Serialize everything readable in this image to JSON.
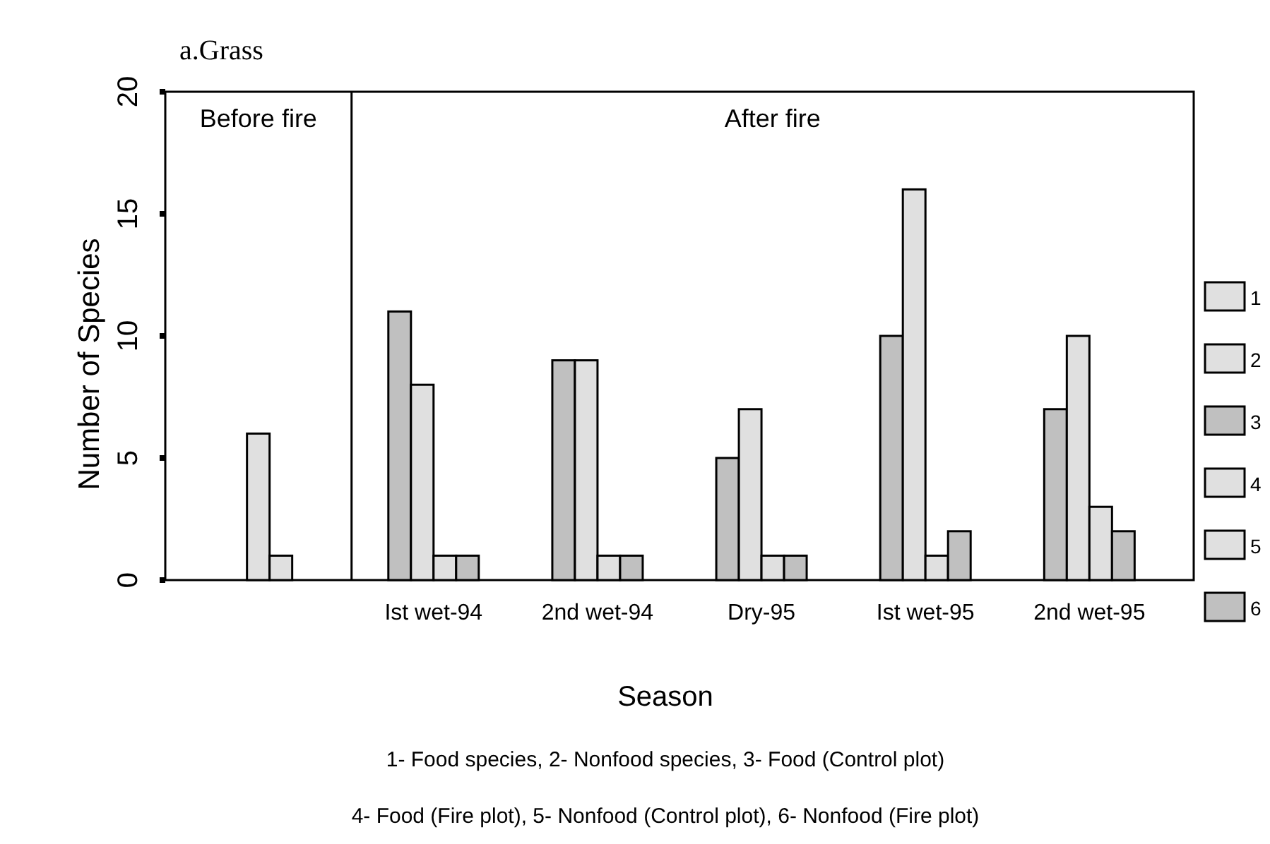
{
  "chart_data": {
    "type": "bar",
    "title": "a.Grass",
    "xlabel": "Season",
    "ylabel": "Number of Species",
    "categories": [
      null,
      "Ist wet-94",
      "2nd wet-94",
      "Dry-95",
      "Ist wet-95",
      "2nd wet-95"
    ],
    "series": [
      {
        "name": "1",
        "color": "#e0e0e0",
        "values": [
          6,
          null,
          null,
          null,
          null,
          null
        ]
      },
      {
        "name": "2",
        "color": "#e0e0e0",
        "values": [
          1,
          null,
          null,
          null,
          null,
          null
        ]
      },
      {
        "name": "3",
        "color": "#c0c0c0",
        "values": [
          null,
          11,
          9,
          5,
          10,
          7
        ]
      },
      {
        "name": "4",
        "color": "#e0e0e0",
        "values": [
          null,
          8,
          9,
          7,
          16,
          10
        ]
      },
      {
        "name": "5",
        "color": "#e0e0e0",
        "values": [
          null,
          1,
          1,
          1,
          1,
          3
        ]
      },
      {
        "name": "6",
        "color": "#c0c0c0",
        "values": [
          null,
          1,
          1,
          1,
          2,
          2
        ]
      }
    ],
    "ylim": [
      0,
      20
    ],
    "yticks": [
      0,
      5,
      10,
      15,
      20
    ],
    "grid": false,
    "legend": "right",
    "annotations": [
      "Before fire",
      "After fire",
      "1- Food species, 2- Nonfood species, 3- Food (Control plot)",
      "4- Food (Fire plot), 5- Nonfood (Control plot), 6- Nonfood (Fire plot)"
    ]
  }
}
